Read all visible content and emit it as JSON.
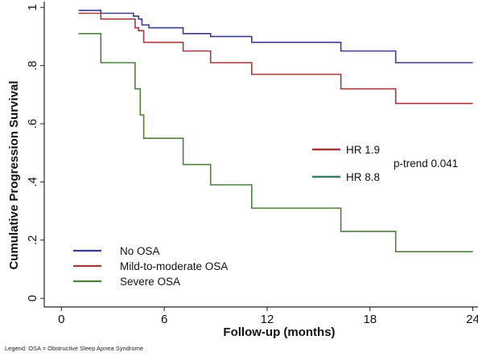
{
  "chart_data": {
    "type": "line",
    "step": true,
    "xlabel": "Follow-up (months)",
    "ylabel": "Cumulative Progression Survival",
    "xlim": [
      -1,
      24.3
    ],
    "ylim": [
      -0.03,
      1.02
    ],
    "x_ticks": [
      0,
      6,
      12,
      18,
      24
    ],
    "x_tick_labels": [
      "0",
      "6",
      "12",
      "18",
      "24"
    ],
    "y_ticks": [
      0,
      0.2,
      0.4,
      0.6,
      0.8,
      1
    ],
    "y_tick_labels": [
      "0",
      ".2",
      ".4",
      ".6",
      ".8",
      "1"
    ],
    "grid": false,
    "legend_position": "bottom-left",
    "series": [
      {
        "name": "No OSA",
        "color": "#3b3b8f",
        "points": [
          [
            1,
            0.99
          ],
          [
            2.3,
            0.98
          ],
          [
            4.2,
            0.97
          ],
          [
            4.5,
            0.96
          ],
          [
            4.7,
            0.94
          ],
          [
            5.1,
            0.93
          ],
          [
            7.1,
            0.91
          ],
          [
            8.7,
            0.9
          ],
          [
            11.1,
            0.88
          ],
          [
            16.3,
            0.85
          ],
          [
            19.5,
            0.81
          ],
          [
            24,
            0.81
          ]
        ]
      },
      {
        "name": "Mild-to-moderate OSA",
        "color": "#a33a3a",
        "points": [
          [
            1,
            0.98
          ],
          [
            2.3,
            0.96
          ],
          [
            4.3,
            0.93
          ],
          [
            4.5,
            0.92
          ],
          [
            4.8,
            0.88
          ],
          [
            7.1,
            0.85
          ],
          [
            8.7,
            0.81
          ],
          [
            11.1,
            0.77
          ],
          [
            16.3,
            0.72
          ],
          [
            19.5,
            0.67
          ],
          [
            24,
            0.67
          ]
        ]
      },
      {
        "name": "Severe OSA",
        "color": "#4f7f3a",
        "points": [
          [
            1,
            0.91
          ],
          [
            2.3,
            0.81
          ],
          [
            4.3,
            0.72
          ],
          [
            4.6,
            0.63
          ],
          [
            4.8,
            0.55
          ],
          [
            7.1,
            0.46
          ],
          [
            8.7,
            0.39
          ],
          [
            11.1,
            0.31
          ],
          [
            16.3,
            0.23
          ],
          [
            19.5,
            0.16
          ],
          [
            24,
            0.16
          ]
        ]
      }
    ],
    "annotations": [
      {
        "text": "HR 1.9",
        "color": "#a33a3a"
      },
      {
        "text": "HR 8.8",
        "color": "#3f7a6a"
      },
      {
        "text": "p-trend 0.041"
      }
    ]
  },
  "footnote": "Legend: OSA = Obstructive Sleep Apnea Syndrome"
}
